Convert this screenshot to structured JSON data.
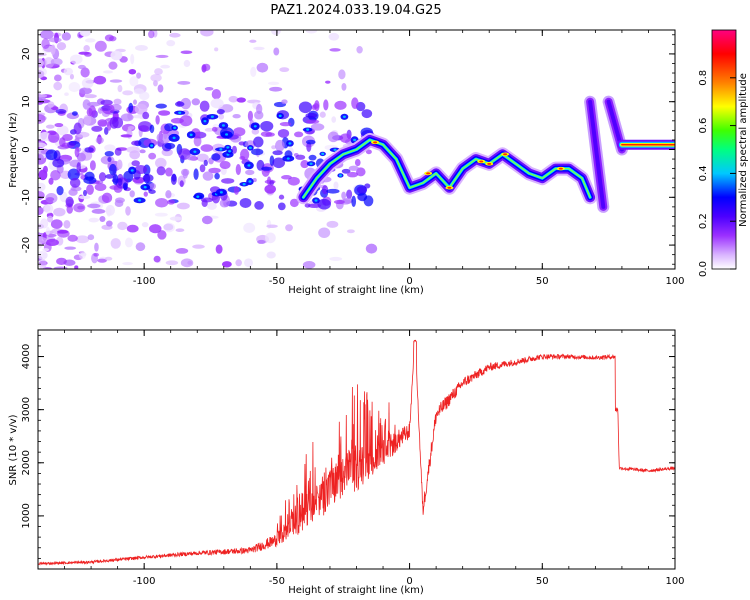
{
  "title": "PAZ1.2024.033.19.04.G25",
  "chart_data": [
    {
      "type": "heatmap",
      "xlabel": "Height of straight line (km)",
      "ylabel": "Frequency (Hz)",
      "xlim": [
        -140,
        100
      ],
      "ylim": [
        -25,
        25
      ],
      "xticks": [
        -100,
        -50,
        0,
        50,
        100
      ],
      "yticks": [
        -20,
        -10,
        0,
        10,
        20
      ],
      "colorbar": {
        "label": "Normalized spectral amplitude",
        "range": [
          0,
          1
        ],
        "ticks": [
          0.0,
          0.2,
          0.4,
          0.6,
          0.8
        ],
        "colors": [
          "#ffffff",
          "#d9b3ff",
          "#9b30ff",
          "#4b00ff",
          "#0000ff",
          "#00c8ff",
          "#00ff80",
          "#40ff00",
          "#ffff00",
          "#ff8000",
          "#ff0000",
          "#ff0080"
        ]
      },
      "ridge": {
        "x": [
          -40,
          -35,
          -30,
          -25,
          -20,
          -15,
          -10,
          -5,
          0,
          5,
          10,
          15,
          20,
          25,
          30,
          35,
          40,
          45,
          50,
          55,
          60,
          65,
          68
        ],
        "y": [
          -10,
          -6,
          -3,
          -1,
          0,
          2,
          1,
          -2,
          -8,
          -7,
          -5,
          -8,
          -4,
          -2,
          -3,
          -1,
          -3,
          -5,
          -6,
          -4,
          -4,
          -6,
          -10
        ]
      },
      "segments": [
        {
          "x": [
            68,
            73
          ],
          "y": [
            10,
            -12
          ]
        },
        {
          "x": [
            75,
            80
          ],
          "y": [
            10,
            0
          ]
        },
        {
          "x": [
            80,
            100
          ],
          "y": [
            1,
            1
          ]
        }
      ]
    },
    {
      "type": "line",
      "xlabel": "Height of straight line (km)",
      "ylabel": "SNR (10 * v/v)",
      "xlim": [
        -140,
        100
      ],
      "ylim": [
        0,
        4500
      ],
      "xticks": [
        -100,
        -50,
        0,
        50,
        100
      ],
      "yticks": [
        1000,
        2000,
        3000,
        4000
      ],
      "color": "#ee2222",
      "x": [
        -140,
        -120,
        -100,
        -80,
        -60,
        -50,
        -40,
        -30,
        -20,
        -10,
        -5,
        0,
        2,
        5,
        10,
        20,
        30,
        40,
        50,
        60,
        70,
        78,
        79,
        90,
        100
      ],
      "y": [
        100,
        130,
        220,
        300,
        350,
        550,
        1000,
        1500,
        1900,
        2200,
        2400,
        2600,
        4400,
        1100,
        2900,
        3500,
        3800,
        3900,
        4000,
        4000,
        3980,
        4000,
        1900,
        1850,
        1900
      ],
      "noise": [
        40,
        50,
        60,
        80,
        120,
        250,
        600,
        800,
        900,
        500,
        400,
        300,
        0,
        300,
        300,
        200,
        150,
        120,
        100,
        80,
        80,
        80,
        60,
        60,
        60
      ]
    }
  ]
}
